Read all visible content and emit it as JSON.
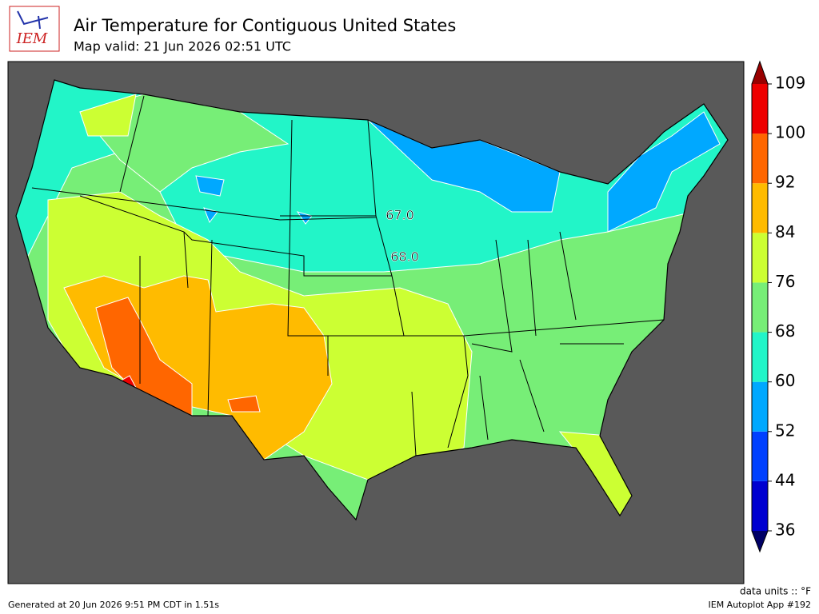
{
  "header": {
    "logo": "IEM",
    "title": "Air Temperature for Contiguous United States",
    "subtitle": "Map valid: 21 Jun 2026 02:51 UTC"
  },
  "map": {
    "contour_labels": [
      "67.0",
      "68.0"
    ]
  },
  "colorbar": {
    "ticks": [
      36,
      44,
      52,
      60,
      68,
      76,
      84,
      92,
      100,
      109
    ],
    "colors": [
      "#0000d0",
      "#0040ff",
      "#00a8ff",
      "#22f5c8",
      "#77ee77",
      "#ccff33",
      "#ffbb00",
      "#ff6600",
      "#ee0000"
    ],
    "over_color": "#990000",
    "under_color": "#000066",
    "units": "data units :: °F"
  },
  "footer": {
    "generated": "Generated at 20 Jun 2026 9:51 PM CDT in 1.51s",
    "app": "IEM Autoplot App #192"
  }
}
